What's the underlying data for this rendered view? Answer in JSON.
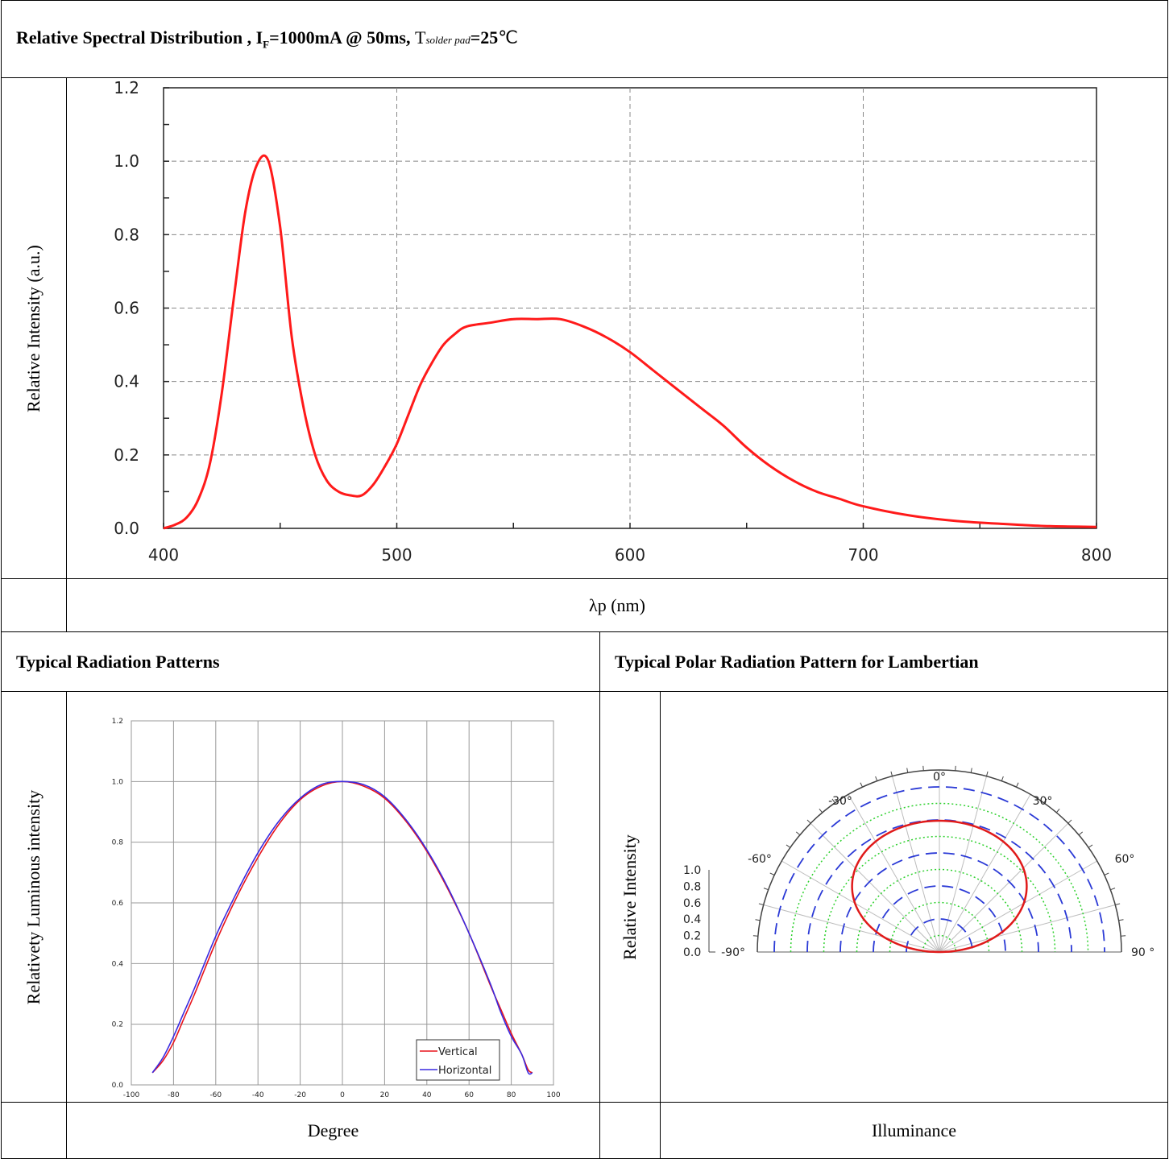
{
  "header": {
    "spectral_title_main": "Relative Spectral Distribution , I",
    "spectral_title_sub": "F",
    "spectral_title_mid": "=1000mA @ 50ms,",
    "spectral_title_t": "T",
    "spectral_title_tsub": "solder pad",
    "spectral_title_end": "=25",
    "spectral_title_unit": "℃",
    "radiation_title": "Typical Radiation Patterns",
    "polar_title": "Typical Polar Radiation Pattern for Lambertian"
  },
  "labels": {
    "spectral_ylabel": "Relative Intensity (a.u.)",
    "spectral_xlabel": "λp (nm)",
    "radiation_ylabel": "Relativety Luminous intensity",
    "radiation_xlabel": "Degree",
    "polar_ylabel": "Relative Intensity",
    "polar_xlabel": "Illuminance"
  },
  "colors": {
    "spectrum": "#ff1a1a",
    "vertical": "#e8141c",
    "horizontal": "#3a2ae0",
    "polar_dash": "#2b3ad6",
    "polar_dot": "#2fd12f",
    "polar_curve": "#e01a1a"
  },
  "chart_data": [
    {
      "type": "line",
      "title": "",
      "xlabel": "λp (nm)",
      "ylabel": "Relative Intensity (a.u.)",
      "xlim": [
        400,
        800
      ],
      "ylim": [
        0.0,
        1.2
      ],
      "x_ticks": [
        400,
        500,
        600,
        700,
        800
      ],
      "y_ticks": [
        "0.0",
        "0.2",
        "0.4",
        "0.6",
        "0.8",
        "1.0",
        "1.2"
      ],
      "grid": true,
      "series": [
        {
          "x": [
            400,
            405,
            410,
            415,
            420,
            425,
            430,
            435,
            440,
            445,
            450,
            455,
            460,
            465,
            470,
            475,
            480,
            485,
            490,
            495,
            500,
            505,
            510,
            515,
            520,
            525,
            530,
            540,
            550,
            560,
            570,
            580,
            590,
            600,
            610,
            620,
            630,
            640,
            650,
            660,
            670,
            680,
            690,
            700,
            720,
            740,
            760,
            780,
            800
          ],
          "y": [
            0.0,
            0.01,
            0.03,
            0.08,
            0.18,
            0.37,
            0.62,
            0.86,
            0.99,
            1.0,
            0.82,
            0.52,
            0.33,
            0.2,
            0.13,
            0.1,
            0.09,
            0.09,
            0.12,
            0.17,
            0.23,
            0.31,
            0.39,
            0.45,
            0.5,
            0.53,
            0.55,
            0.56,
            0.57,
            0.57,
            0.57,
            0.55,
            0.52,
            0.48,
            0.43,
            0.38,
            0.33,
            0.28,
            0.22,
            0.17,
            0.13,
            0.1,
            0.08,
            0.06,
            0.035,
            0.02,
            0.012,
            0.006,
            0.004
          ]
        }
      ]
    },
    {
      "type": "line",
      "title": "",
      "xlabel": "Degree",
      "ylabel": "Relativety Luminous intensity",
      "xlim": [
        -100,
        100
      ],
      "ylim": [
        0.0,
        1.2
      ],
      "x_ticks": [
        -100,
        -80,
        -60,
        -40,
        -20,
        0,
        20,
        40,
        60,
        80,
        100
      ],
      "y_ticks": [
        "0.0",
        "0.2",
        "0.4",
        "0.6",
        "0.8",
        "1.0",
        "1.2"
      ],
      "grid": true,
      "legend": "bottom-right",
      "series": [
        {
          "name": "Vertical",
          "x": [
            -90,
            -85,
            -80,
            -75,
            -70,
            -60,
            -50,
            -40,
            -30,
            -20,
            -10,
            0,
            10,
            20,
            30,
            40,
            50,
            60,
            70,
            75,
            80,
            85,
            88,
            90
          ],
          "y": [
            0.04,
            0.08,
            0.14,
            0.22,
            0.3,
            0.47,
            0.62,
            0.75,
            0.86,
            0.94,
            0.985,
            1.0,
            0.985,
            0.945,
            0.87,
            0.77,
            0.645,
            0.5,
            0.33,
            0.25,
            0.17,
            0.1,
            0.05,
            0.04
          ]
        },
        {
          "name": "Horizontal",
          "x": [
            -90,
            -85,
            -80,
            -75,
            -70,
            -60,
            -50,
            -40,
            -30,
            -20,
            -10,
            0,
            10,
            20,
            30,
            40,
            50,
            60,
            70,
            75,
            80,
            85,
            88,
            90
          ],
          "y": [
            0.04,
            0.09,
            0.16,
            0.24,
            0.32,
            0.49,
            0.635,
            0.765,
            0.87,
            0.945,
            0.99,
            1.0,
            0.99,
            0.95,
            0.875,
            0.775,
            0.65,
            0.5,
            0.335,
            0.24,
            0.16,
            0.1,
            0.04,
            0.04
          ]
        }
      ]
    },
    {
      "type": "polar",
      "title": "",
      "ylabel": "Relative Intensity",
      "xlabel": "Illuminance",
      "r_ticks": [
        "0.0",
        "0.2",
        "0.4",
        "0.6",
        "0.8",
        "1.0"
      ],
      "angle_labels": [
        "-90°",
        "-60°",
        "-30°",
        "0°",
        "30°",
        "60°",
        "90 °"
      ],
      "curve": "cos",
      "curve_peak": 1.0
    }
  ]
}
